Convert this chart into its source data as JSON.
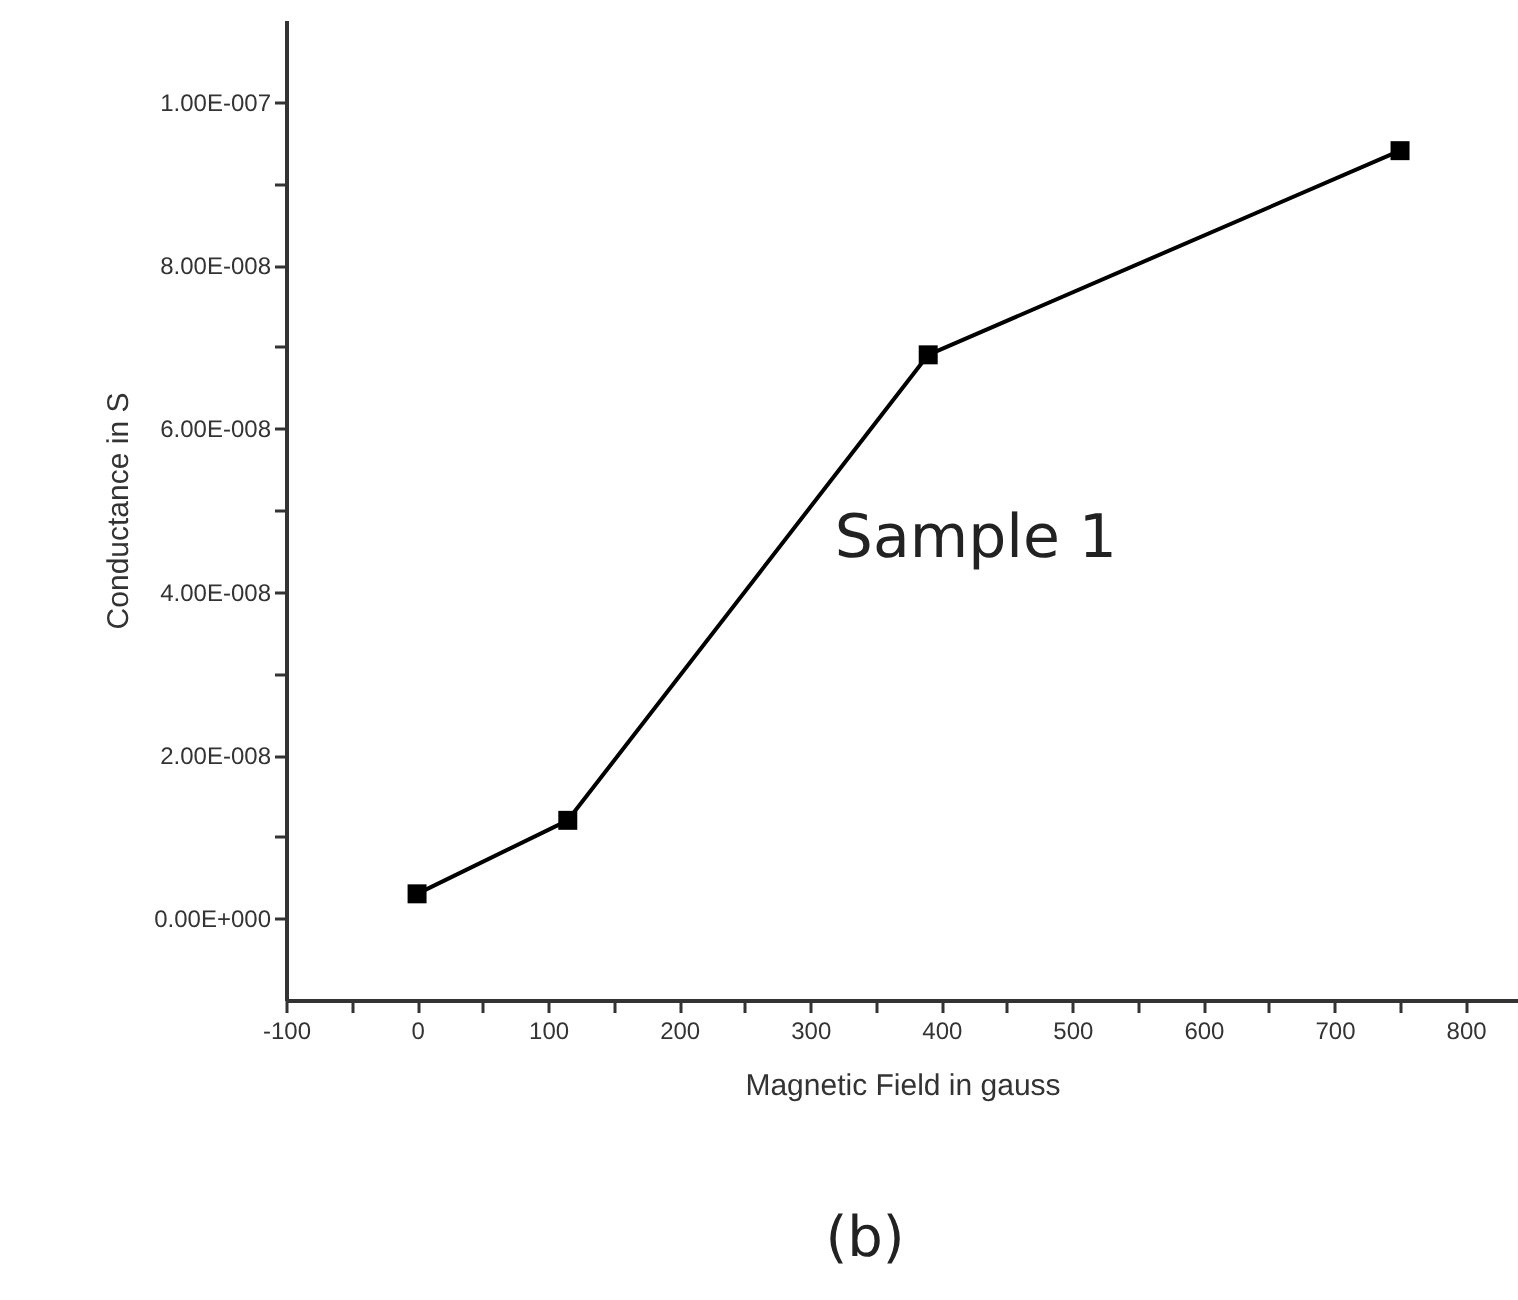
{
  "chart_data": {
    "type": "line",
    "xlabel": "Magnetic Field in gauss",
    "ylabel": "Conductance  in S",
    "x": [
      0,
      115,
      390,
      750
    ],
    "series": [
      {
        "color": "#000000",
        "values": [
          3e-09,
          1.2e-08,
          6.9e-08,
          9.4e-08
        ]
      }
    ],
    "marker": "square",
    "line_style": "solid",
    "grid": false,
    "xlim": [
      -100,
      840
    ],
    "xticks": [
      -100,
      {
        "value": -50,
        "label": null
      },
      0,
      {
        "value": 50,
        "label": null
      },
      100,
      {
        "value": 150,
        "label": null
      },
      200,
      {
        "value": 250,
        "label": null
      },
      300,
      {
        "value": 350,
        "label": null
      },
      400,
      {
        "value": 450,
        "label": null
      },
      500,
      {
        "value": 550,
        "label": null
      },
      600,
      {
        "value": 650,
        "label": null
      },
      700,
      {
        "value": 750,
        "label": null
      },
      800
    ],
    "ylim": [
      -1e-08,
      1.1e-07
    ],
    "yticks": [
      {
        "value": 0,
        "label": "0.00E+000"
      },
      {
        "value": 1e-08,
        "label": null
      },
      {
        "value": 2e-08,
        "label": "2.00E-008"
      },
      {
        "value": 3e-08,
        "label": null
      },
      {
        "value": 4e-08,
        "label": "4.00E-008"
      },
      {
        "value": 5e-08,
        "label": null
      },
      {
        "value": 6e-08,
        "label": "6.00E-008"
      },
      {
        "value": 7e-08,
        "label": null
      },
      {
        "value": 8e-08,
        "label": "8.00E-008"
      },
      {
        "value": 9e-08,
        "label": null
      },
      {
        "value": 1e-07,
        "label": "1.00E-007"
      }
    ],
    "annotations": [
      "Sample 1",
      "(b)"
    ]
  }
}
